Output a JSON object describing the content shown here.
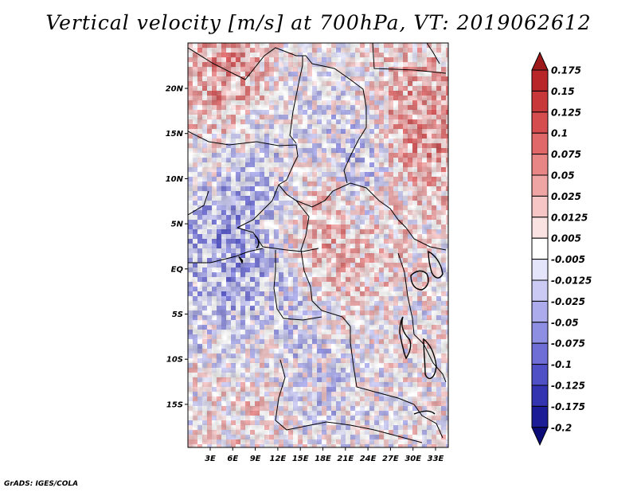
{
  "title": "Vertical velocity [m/s] at 700hPa, VT: 2019062612",
  "credit": "GrADS: IGES/COLA",
  "map": {
    "lat_ticks": [
      "20N",
      "15N",
      "10N",
      "5N",
      "EQ",
      "5S",
      "10S",
      "15S"
    ],
    "lon_ticks": [
      "3E",
      "6E",
      "9E",
      "12E",
      "15E",
      "18E",
      "21E",
      "24E",
      "27E",
      "30E",
      "33E"
    ]
  },
  "colorbar": {
    "labels": [
      "0.175",
      "0.15",
      "0.125",
      "0.1",
      "0.075",
      "0.05",
      "0.025",
      "0.0125",
      "0.005",
      "-0.005",
      "-0.0125",
      "-0.025",
      "-0.05",
      "-0.075",
      "-0.1",
      "-0.125",
      "-0.175",
      "-0.2"
    ],
    "colors": [
      "#9e1a1a",
      "#b8262a",
      "#c8373a",
      "#d64d4f",
      "#e06868",
      "#e88686",
      "#f0a5a5",
      "#f6c5c5",
      "#fbe2e2",
      "#ffffff",
      "#e4e4fa",
      "#cacaf4",
      "#acacec",
      "#8e8ee2",
      "#6e6ed6",
      "#4f4fc6",
      "#3434b0",
      "#1c1c96",
      "#0c0c78"
    ]
  }
}
